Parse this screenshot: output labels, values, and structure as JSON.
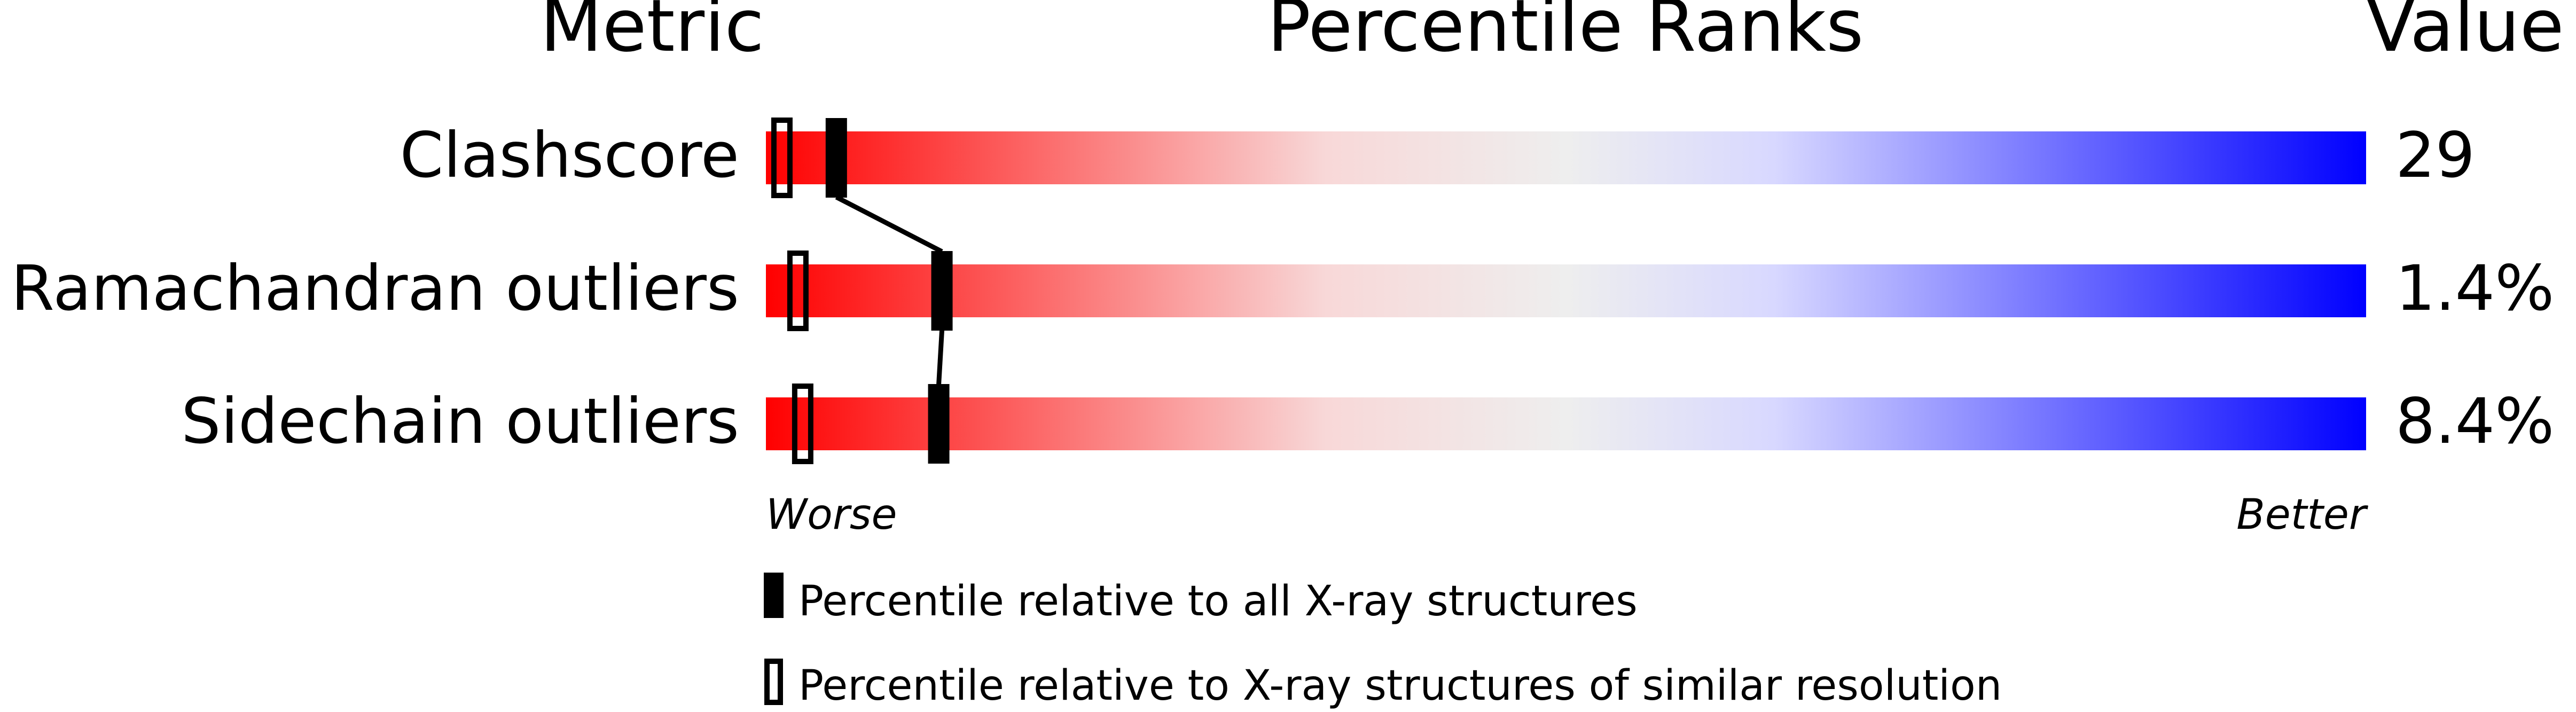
{
  "chart_data": {
    "type": "bar",
    "headers": {
      "metric": "Metric",
      "ranks": "Percentile Ranks",
      "value": "Value"
    },
    "xlim": [
      0,
      100
    ],
    "axis_labels": {
      "left": "Worse",
      "right": "Better"
    },
    "gradient_colors": [
      "#ff0000",
      "#f8d8d8",
      "#eeeeee",
      "#d8d8ff",
      "#0000ff"
    ],
    "rows": [
      {
        "metric": "Clashscore",
        "value": "29",
        "percentile_all": 4.4,
        "percentile_similar": 1.0
      },
      {
        "metric": "Ramachandran outliers",
        "value": "1.4%",
        "percentile_all": 11.0,
        "percentile_similar": 2.0
      },
      {
        "metric": "Sidechain outliers",
        "value": "8.4%",
        "percentile_all": 10.8,
        "percentile_similar": 2.3
      }
    ],
    "legend": [
      {
        "marker": "filled",
        "label": "Percentile relative to all X-ray structures"
      },
      {
        "marker": "open",
        "label": "Percentile relative to X-ray structures of similar resolution"
      }
    ]
  }
}
